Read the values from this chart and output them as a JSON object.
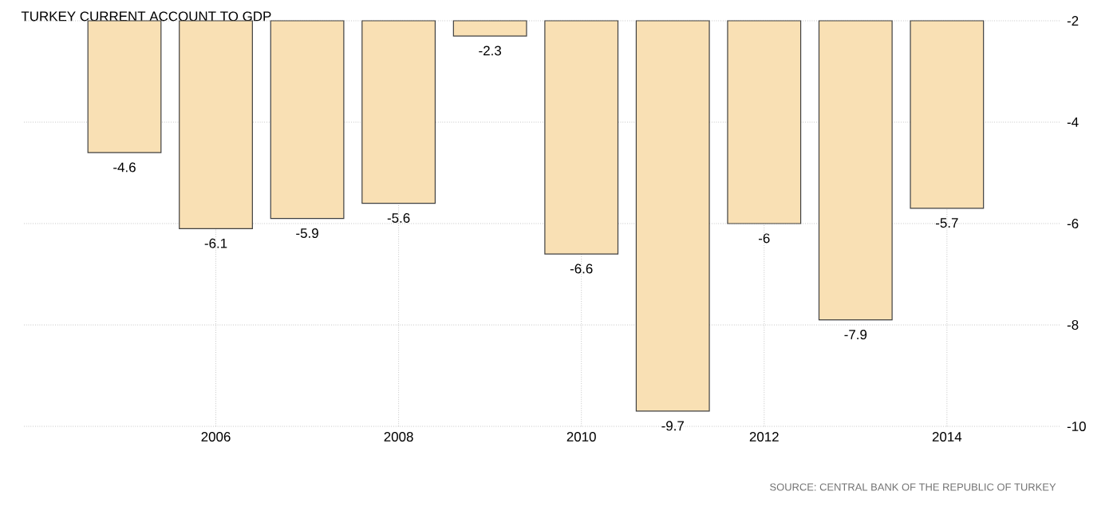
{
  "chart_data": {
    "type": "bar",
    "title": "TURKEY CURRENT ACCOUNT TO GDP",
    "x": [
      2005,
      2006,
      2007,
      2008,
      2009,
      2010,
      2011,
      2012,
      2013,
      2014
    ],
    "values": [
      -4.6,
      -6.1,
      -5.9,
      -5.6,
      -2.3,
      -6.6,
      -9.7,
      -6,
      -7.9,
      -5.7
    ],
    "color": "#f9e0b4",
    "xlim": [
      2003.9,
      2015.25
    ],
    "xticks": [
      2006,
      2008,
      2010,
      2012,
      2014
    ],
    "ylim": [
      -10,
      -2
    ],
    "yticks": [
      -10,
      -8,
      -6,
      -4,
      -2
    ],
    "grid": true,
    "data_labels": true,
    "annotations": [
      "SOURCE: CENTRAL BANK OF THE REPUBLIC OF TURKEY"
    ]
  }
}
